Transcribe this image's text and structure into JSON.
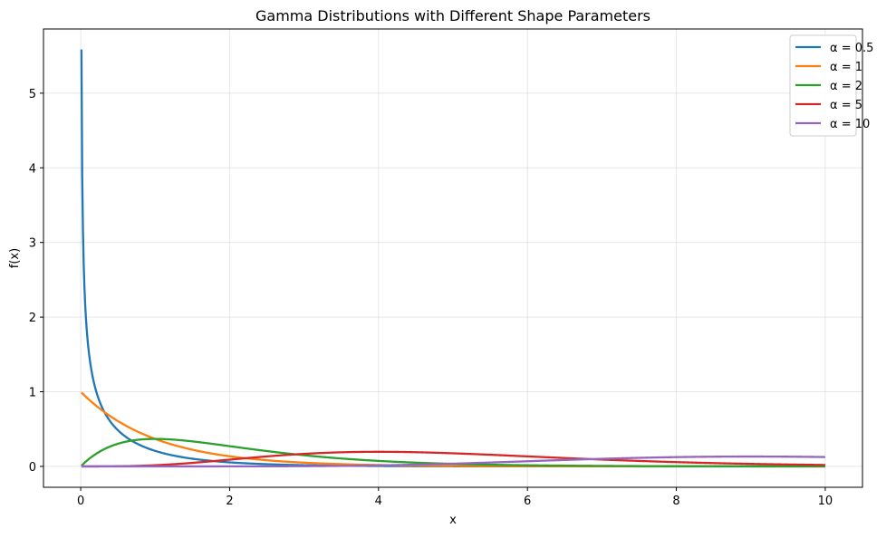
{
  "chart_data": {
    "type": "line",
    "title": "Gamma Distributions with Different Shape Parameters",
    "xlabel": "x",
    "ylabel": "f(x)",
    "xlim": [
      -0.5,
      10.5
    ],
    "ylim": [
      -0.28,
      5.86
    ],
    "xticks": [
      0,
      2,
      4,
      6,
      8,
      10
    ],
    "yticks": [
      0,
      1,
      2,
      3,
      4,
      5
    ],
    "grid": true,
    "legend_position": "top-right",
    "x_range": [
      0.01,
      10
    ],
    "series": [
      {
        "name": "α = 0.5",
        "alpha": 0.5,
        "color": "#1f77b4"
      },
      {
        "name": "α = 1",
        "alpha": 1,
        "color": "#ff7f0e"
      },
      {
        "name": "α = 2",
        "alpha": 2,
        "color": "#2ca02c"
      },
      {
        "name": "α = 5",
        "alpha": 5,
        "color": "#d62728"
      },
      {
        "name": "α = 10",
        "alpha": 10,
        "color": "#9467bd"
      }
    ]
  }
}
